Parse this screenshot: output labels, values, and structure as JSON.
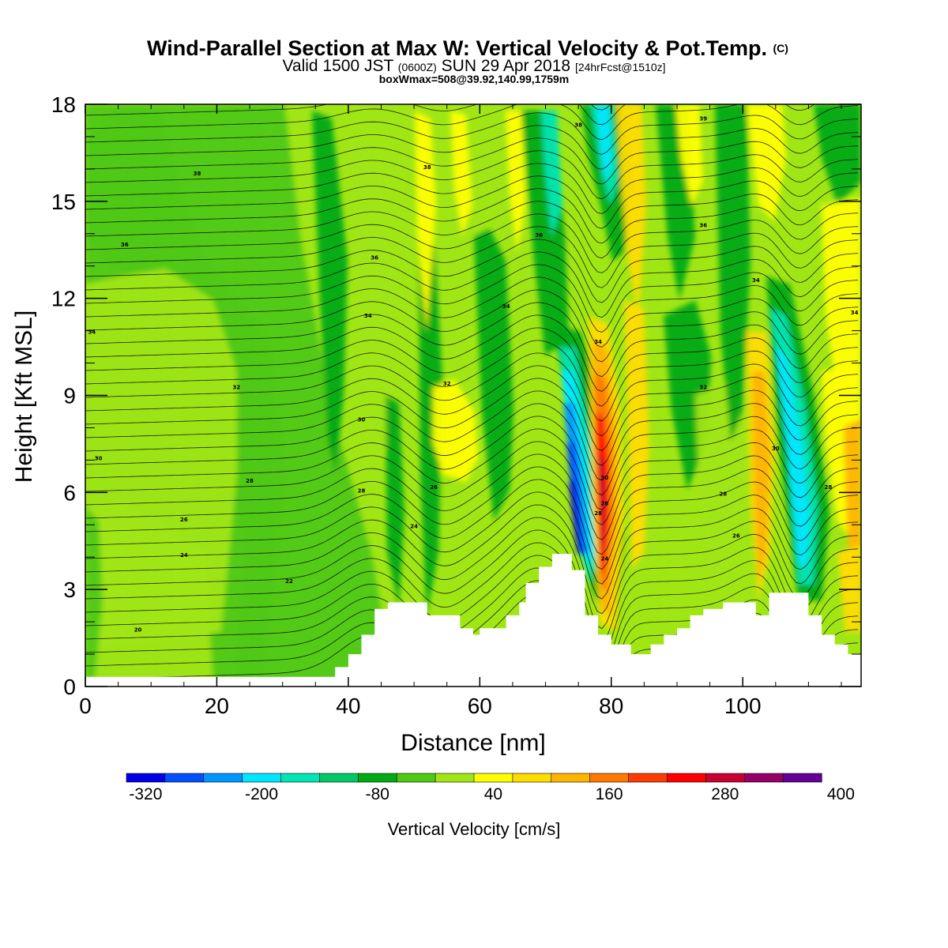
{
  "header": {
    "title": "Wind-Parallel Section at Max W: Vertical Velocity & Pot.Temp.",
    "title_suffix": "(C)",
    "valid_prefix": "Valid 1500 JST",
    "valid_utc": "(0600Z)",
    "valid_date": "SUN 29 Apr 2018",
    "forecast_tag": "[24hrFcst@1510z]",
    "box_max": "boxWmax=508@39.92,140.99,1759m"
  },
  "chart_data": {
    "type": "heatmap",
    "xlabel": "Distance [nm]",
    "ylabel": "Height [Kft MSL]",
    "xlim": [
      0,
      118
    ],
    "ylim": [
      0,
      18
    ],
    "x_ticks": [
      0,
      20,
      40,
      60,
      80,
      100
    ],
    "y_ticks": [
      0,
      3,
      6,
      9,
      12,
      15,
      18
    ],
    "colorbar": {
      "label": "Vertical Velocity [cm/s]",
      "colors": [
        "#0000e6",
        "#0050ff",
        "#0096ff",
        "#00e6ff",
        "#00e6b4",
        "#00c864",
        "#00aa14",
        "#50c814",
        "#a0e614",
        "#ffff00",
        "#ffdc00",
        "#ffb400",
        "#ff7800",
        "#ff3c00",
        "#ff0000",
        "#c80032",
        "#960064",
        "#640096"
      ],
      "ticks": [
        "-320",
        "-200",
        "-80",
        "40",
        "160",
        "280",
        "400"
      ]
    },
    "updraft_columns_nm": [
      52,
      55,
      68,
      79,
      82,
      103,
      116
    ],
    "downdraft_columns_nm": [
      72,
      76,
      108
    ],
    "max_w_cm_s": 508,
    "max_w_location": "39.92,140.99",
    "max_w_height_m": 1759,
    "theta_isotherm_labels": [
      "20",
      "22",
      "24",
      "26",
      "28",
      "30",
      "32",
      "34",
      "36",
      "38"
    ],
    "terrain_kft": [
      [
        0,
        0.3
      ],
      [
        38,
        0.3
      ],
      [
        38,
        0.6
      ],
      [
        40,
        0.6
      ],
      [
        40,
        1.0
      ],
      [
        42,
        1.0
      ],
      [
        42,
        1.6
      ],
      [
        44,
        1.6
      ],
      [
        44,
        2.4
      ],
      [
        46,
        2.4
      ],
      [
        46,
        2.6
      ],
      [
        52,
        2.6
      ],
      [
        52,
        2.2
      ],
      [
        57,
        2.2
      ],
      [
        57,
        1.8
      ],
      [
        59,
        1.8
      ],
      [
        59,
        1.6
      ],
      [
        60,
        1.6
      ],
      [
        60,
        1.8
      ],
      [
        64,
        1.8
      ],
      [
        64,
        2.2
      ],
      [
        66,
        2.2
      ],
      [
        66,
        2.6
      ],
      [
        67,
        2.6
      ],
      [
        67,
        3.2
      ],
      [
        69,
        3.2
      ],
      [
        69,
        3.7
      ],
      [
        71,
        3.7
      ],
      [
        71,
        4.1
      ],
      [
        74,
        4.1
      ],
      [
        74,
        3.6
      ],
      [
        76,
        3.6
      ],
      [
        76,
        2.2
      ],
      [
        78,
        2.2
      ],
      [
        78,
        1.6
      ],
      [
        80,
        1.6
      ],
      [
        80,
        1.3
      ],
      [
        83,
        1.3
      ],
      [
        83,
        1.0
      ],
      [
        86,
        1.0
      ],
      [
        86,
        1.3
      ],
      [
        88,
        1.3
      ],
      [
        88,
        1.6
      ],
      [
        90,
        1.6
      ],
      [
        90,
        1.8
      ],
      [
        92,
        1.8
      ],
      [
        92,
        2.2
      ],
      [
        94,
        2.2
      ],
      [
        94,
        2.4
      ],
      [
        97,
        2.4
      ],
      [
        97,
        2.6
      ],
      [
        102,
        2.6
      ],
      [
        102,
        2.2
      ],
      [
        104,
        2.2
      ],
      [
        104,
        2.9
      ],
      [
        110,
        2.9
      ],
      [
        110,
        2.2
      ],
      [
        112,
        2.2
      ],
      [
        112,
        1.6
      ],
      [
        114,
        1.6
      ],
      [
        114,
        1.3
      ],
      [
        116,
        1.3
      ],
      [
        116,
        1.0
      ],
      [
        118,
        1.0
      ]
    ]
  }
}
